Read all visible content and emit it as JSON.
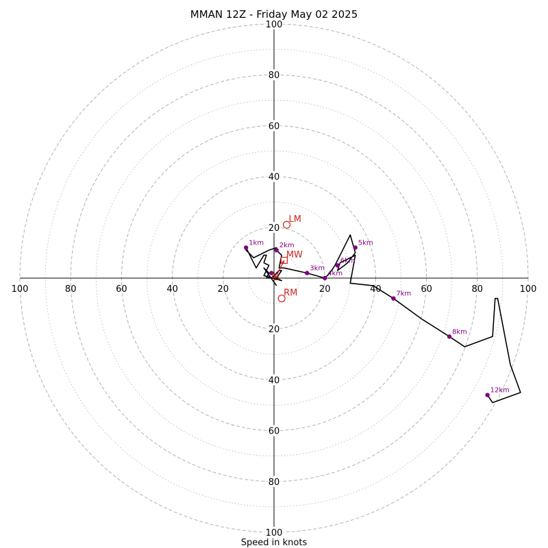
{
  "chart_data": {
    "type": "hodograph",
    "title": "MMAN 12Z - Friday May 02 2025",
    "xlabel": "Speed in knots",
    "ring_ticks": [
      "20",
      "40",
      "60",
      "80",
      "100"
    ],
    "rings_dashed": [
      20,
      40,
      60,
      80,
      100
    ],
    "rings_dotted": [
      10,
      30,
      50,
      70,
      90
    ],
    "axis_range": [
      -100,
      100
    ],
    "colors": {
      "trace": "#000000",
      "height_points": "#800080",
      "storm_markers": "#cc2222",
      "grid": "#b0b0b0"
    },
    "trace": [
      [
        1,
        -3
      ],
      [
        -4,
        4
      ],
      [
        -2,
        2
      ],
      [
        -3,
        0
      ],
      [
        -1,
        0
      ],
      [
        2,
        3
      ],
      [
        3,
        3
      ],
      [
        1,
        0
      ],
      [
        3,
        -1
      ],
      [
        -4,
        1
      ],
      [
        -3,
        3
      ],
      [
        -2,
        5
      ],
      [
        -4,
        6
      ],
      [
        -3,
        9
      ],
      [
        -4,
        9
      ],
      [
        -7,
        4
      ],
      [
        -9,
        8
      ],
      [
        -11,
        12
      ],
      [
        -11,
        11
      ],
      [
        -10,
        10
      ],
      [
        -8,
        8
      ],
      [
        -6,
        9
      ],
      [
        -4,
        10
      ],
      [
        -2,
        11
      ],
      [
        1,
        12
      ],
      [
        1,
        11
      ],
      [
        2,
        10
      ],
      [
        3,
        9
      ],
      [
        2,
        4
      ],
      [
        4,
        4
      ],
      [
        13,
        2
      ],
      [
        20,
        0
      ],
      [
        22,
        2
      ],
      [
        24,
        5
      ],
      [
        26,
        9
      ],
      [
        30,
        17
      ],
      [
        32,
        10
      ],
      [
        29,
        6
      ],
      [
        25,
        3
      ],
      [
        26,
        6
      ],
      [
        32,
        9
      ],
      [
        30,
        -2
      ],
      [
        39,
        -3
      ],
      [
        47,
        -8
      ],
      [
        58,
        -16
      ],
      [
        69,
        -23
      ],
      [
        75,
        -27
      ],
      [
        86,
        -23
      ],
      [
        87,
        -8
      ],
      [
        88,
        -8
      ],
      [
        93,
        -34
      ],
      [
        97,
        -45
      ],
      [
        86,
        -49
      ],
      [
        84,
        -46
      ]
    ],
    "height_points": [
      {
        "label": "1km",
        "u": -11,
        "v": 12
      },
      {
        "label": "2km",
        "u": 1,
        "v": 11
      },
      {
        "label": "3km",
        "u": 13,
        "v": 2
      },
      {
        "label": "4km",
        "u": 20,
        "v": 0
      },
      {
        "label": "5km",
        "u": 32,
        "v": 12
      },
      {
        "label": "6km",
        "u": 25,
        "v": 5
      },
      {
        "label": "7km",
        "u": 47,
        "v": -8
      },
      {
        "label": "8km",
        "u": 69,
        "v": -23
      },
      {
        "label": "12km",
        "u": 84,
        "v": -46
      },
      {
        "label": "",
        "u": -1,
        "v": 2
      }
    ],
    "storm_markers": [
      {
        "label": "LM",
        "u": 5,
        "v": 21,
        "shape": "circle"
      },
      {
        "label": "MW",
        "u": 4,
        "v": 7,
        "shape": "square"
      },
      {
        "label": "RM",
        "u": 3,
        "v": -8,
        "shape": "circle"
      }
    ],
    "shear_arrow": {
      "from": [
        1,
        1
      ],
      "to": [
        4,
        7
      ]
    },
    "small_markers": [
      [
        0,
        1
      ],
      [
        1,
        0
      ]
    ]
  }
}
